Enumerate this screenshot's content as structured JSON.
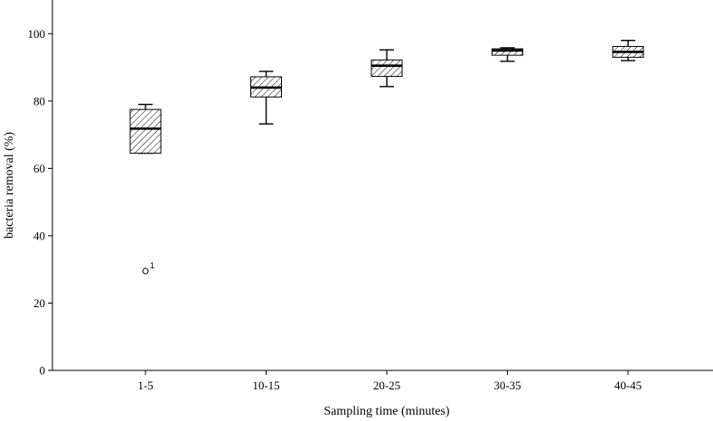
{
  "chart_data": {
    "type": "box",
    "xlabel": "Sampling time (minutes)",
    "ylabel": "bacteria removal (%)",
    "ylim": [
      0,
      110
    ],
    "yticks": [
      0,
      20,
      40,
      60,
      80,
      100
    ],
    "grid": false,
    "categories": [
      "1-5",
      "10-15",
      "20-25",
      "30-35",
      "40-45"
    ],
    "boxes": [
      {
        "category": "1-5",
        "min": 64.5,
        "q1": 64.5,
        "median": 71.8,
        "q3": 77.5,
        "max": 79.0,
        "outliers": [
          {
            "value": 29.5,
            "label": "1"
          }
        ]
      },
      {
        "category": "10-15",
        "min": 73.2,
        "q1": 81.2,
        "median": 84.0,
        "q3": 87.2,
        "max": 88.8,
        "outliers": []
      },
      {
        "category": "20-25",
        "min": 84.3,
        "q1": 87.3,
        "median": 90.5,
        "q3": 92.2,
        "max": 95.2,
        "outliers": []
      },
      {
        "category": "30-35",
        "min": 91.8,
        "q1": 93.6,
        "median": 95.0,
        "q3": 95.5,
        "max": 95.8,
        "outliers": []
      },
      {
        "category": "40-45",
        "min": 92.0,
        "q1": 93.0,
        "median": 94.6,
        "q3": 96.2,
        "max": 98.0,
        "outliers": []
      }
    ],
    "box_fill": "hatched",
    "colors": {
      "stroke": "#000000",
      "background": "#ffffff"
    }
  }
}
